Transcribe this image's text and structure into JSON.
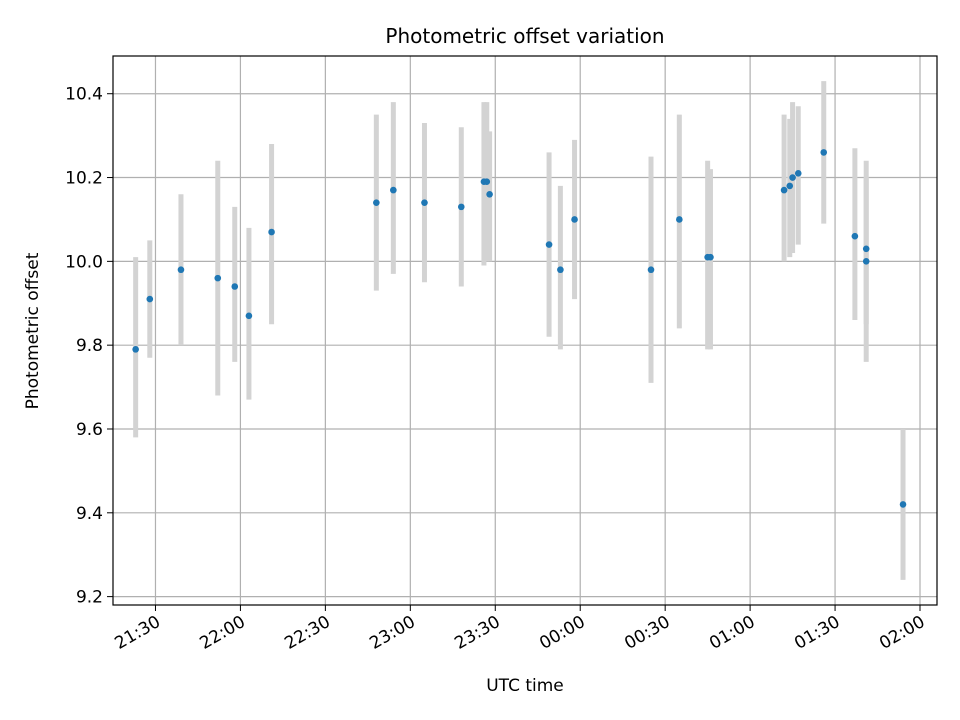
{
  "chart_data": {
    "type": "scatter",
    "title": "Photometric offset variation",
    "xlabel": "UTC time",
    "ylabel": "Photometric offset",
    "grid": true,
    "errorbar_color": "#d3d3d3",
    "marker_color": "#1f77b4",
    "xlim": [
      "21:15",
      "02:06"
    ],
    "ylim": [
      9.18,
      10.49
    ],
    "x_ticks": [
      "21:30",
      "22:00",
      "22:30",
      "23:00",
      "23:30",
      "00:00",
      "00:30",
      "01:00",
      "01:30",
      "02:00"
    ],
    "y_ticks": [
      "9.2",
      "9.4",
      "9.6",
      "9.8",
      "10.0",
      "10.2",
      "10.4"
    ],
    "points": [
      {
        "x": "21:23",
        "y": 9.79,
        "ylow": 9.58,
        "yhigh": 10.01
      },
      {
        "x": "21:28",
        "y": 9.91,
        "ylow": 9.77,
        "yhigh": 10.05
      },
      {
        "x": "21:39",
        "y": 9.98,
        "ylow": 9.8,
        "yhigh": 10.16
      },
      {
        "x": "21:52",
        "y": 9.96,
        "ylow": 9.68,
        "yhigh": 10.24
      },
      {
        "x": "21:58",
        "y": 9.94,
        "ylow": 9.76,
        "yhigh": 10.13
      },
      {
        "x": "22:03",
        "y": 9.87,
        "ylow": 9.67,
        "yhigh": 10.08
      },
      {
        "x": "22:11",
        "y": 10.07,
        "ylow": 9.85,
        "yhigh": 10.28
      },
      {
        "x": "22:48",
        "y": 10.14,
        "ylow": 9.93,
        "yhigh": 10.35
      },
      {
        "x": "22:54",
        "y": 10.17,
        "ylow": 9.97,
        "yhigh": 10.38
      },
      {
        "x": "23:05",
        "y": 10.14,
        "ylow": 9.95,
        "yhigh": 10.33
      },
      {
        "x": "23:18",
        "y": 10.13,
        "ylow": 9.94,
        "yhigh": 10.32
      },
      {
        "x": "23:26",
        "y": 10.19,
        "ylow": 9.99,
        "yhigh": 10.38
      },
      {
        "x": "23:27",
        "y": 10.19,
        "ylow": 10.0,
        "yhigh": 10.38
      },
      {
        "x": "23:28",
        "y": 10.16,
        "ylow": 10.0,
        "yhigh": 10.31
      },
      {
        "x": "23:49",
        "y": 10.04,
        "ylow": 9.82,
        "yhigh": 10.26
      },
      {
        "x": "23:53",
        "y": 9.98,
        "ylow": 9.79,
        "yhigh": 10.18
      },
      {
        "x": "23:58",
        "y": 10.1,
        "ylow": 9.91,
        "yhigh": 10.29
      },
      {
        "x": "00:25",
        "y": 9.98,
        "ylow": 9.71,
        "yhigh": 10.25
      },
      {
        "x": "00:35",
        "y": 10.1,
        "ylow": 9.84,
        "yhigh": 10.35
      },
      {
        "x": "00:45",
        "y": 10.01,
        "ylow": 9.79,
        "yhigh": 10.24
      },
      {
        "x": "00:46",
        "y": 10.01,
        "ylow": 9.79,
        "yhigh": 10.22
      },
      {
        "x": "01:12",
        "y": 10.17,
        "ylow": 10.0,
        "yhigh": 10.35
      },
      {
        "x": "01:14",
        "y": 10.18,
        "ylow": 10.01,
        "yhigh": 10.34
      },
      {
        "x": "01:15",
        "y": 10.2,
        "ylow": 10.02,
        "yhigh": 10.38
      },
      {
        "x": "01:17",
        "y": 10.21,
        "ylow": 10.04,
        "yhigh": 10.37
      },
      {
        "x": "01:26",
        "y": 10.26,
        "ylow": 10.09,
        "yhigh": 10.43
      },
      {
        "x": "01:37",
        "y": 10.06,
        "ylow": 9.86,
        "yhigh": 10.27
      },
      {
        "x": "01:41",
        "y": 10.03,
        "ylow": 9.85,
        "yhigh": 10.2
      },
      {
        "x": "01:41",
        "y": 10.0,
        "ylow": 9.76,
        "yhigh": 10.24
      },
      {
        "x": "01:54",
        "y": 9.42,
        "ylow": 9.24,
        "yhigh": 9.6
      }
    ]
  }
}
